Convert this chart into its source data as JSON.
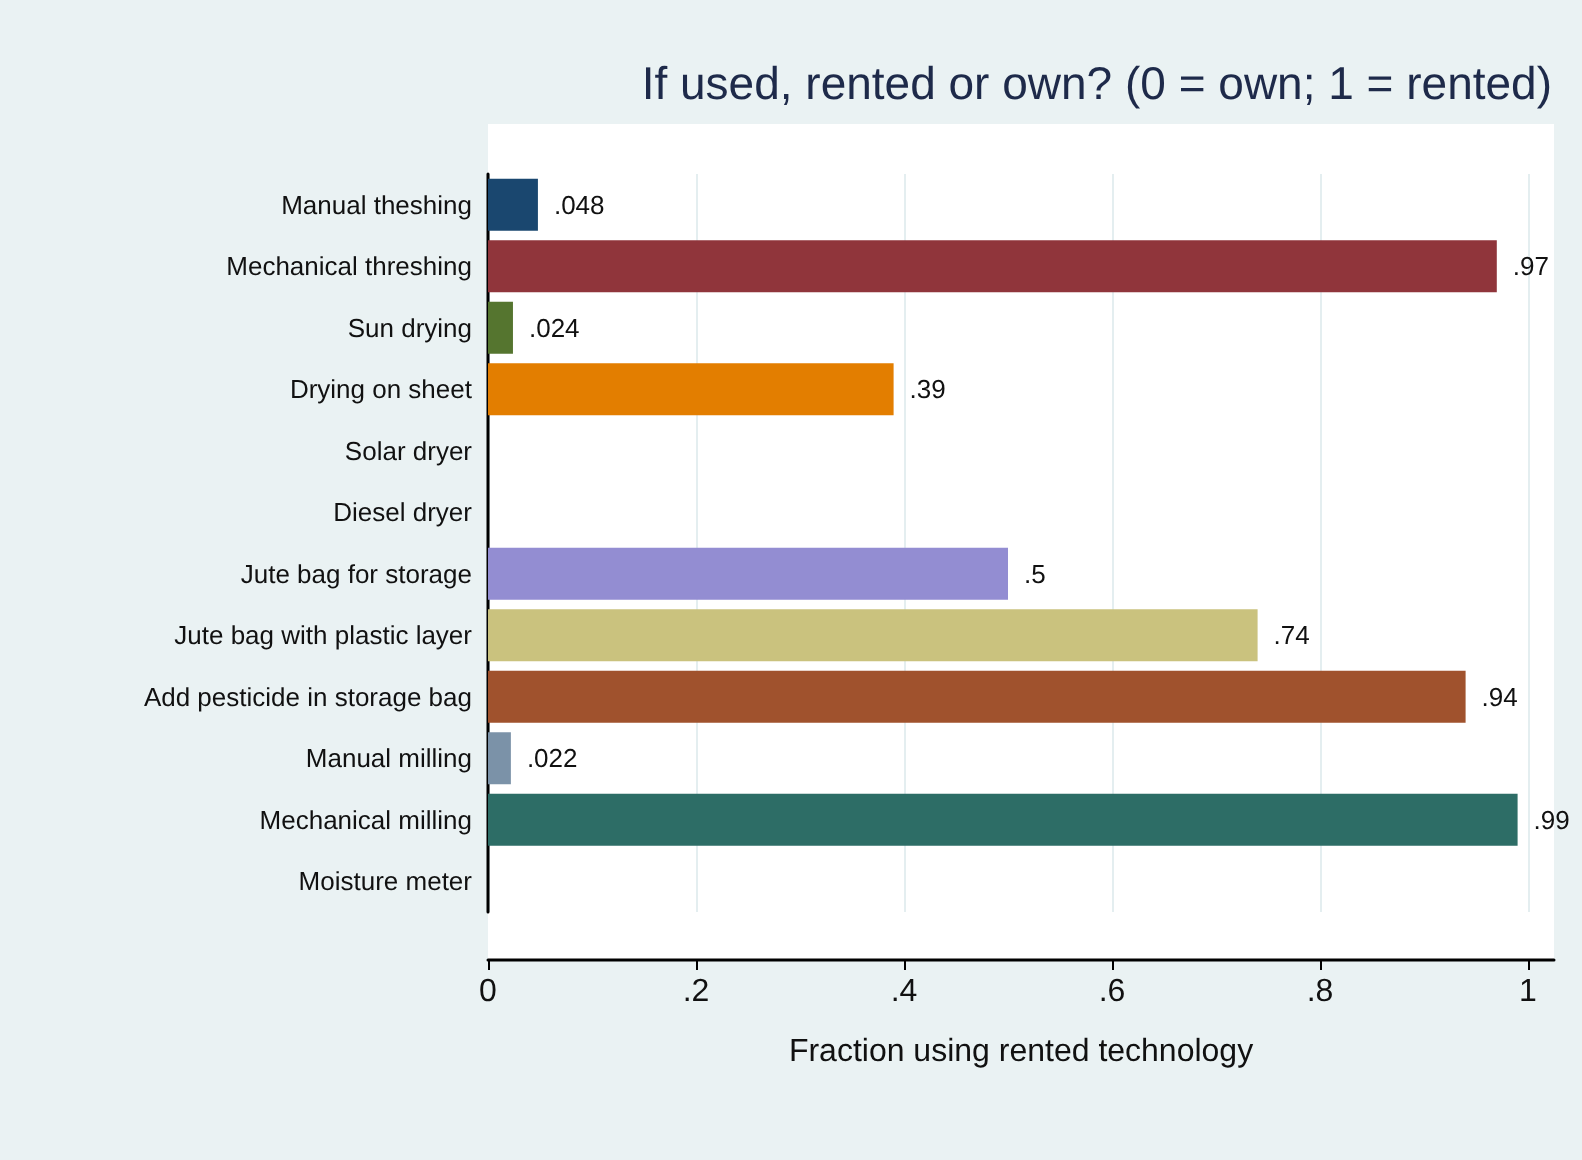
{
  "chart_data": {
    "type": "bar",
    "orientation": "horizontal",
    "title": "If used, rented or own? (0 = own; 1 = rented)",
    "xlabel": "Fraction using rented technology",
    "categories": [
      "Manual theshing",
      "Mechanical threshing",
      "Sun drying",
      "Drying on sheet",
      "Solar dryer",
      "Diesel dryer",
      "Jute bag for storage",
      "Jute bag with plastic layer",
      "Add pesticide in storage bag",
      "Manual milling",
      "Mechanical milling",
      "Moisture meter"
    ],
    "values": [
      0.048,
      0.97,
      0.024,
      0.39,
      null,
      null,
      0.5,
      0.74,
      0.94,
      0.022,
      0.99,
      null
    ],
    "value_labels": [
      ".048",
      ".97",
      ".024",
      ".39",
      null,
      null,
      ".5",
      ".74",
      ".94",
      ".022",
      ".99",
      null
    ],
    "colors": [
      "#1a476f",
      "#90353b",
      "#55752f",
      "#e37e00",
      null,
      null,
      "#938dd2",
      "#cac27e",
      "#a0522d",
      "#7b92a8",
      "#2d6d66",
      null
    ],
    "xlim": [
      0,
      1.025
    ],
    "xticks": [
      {
        "value": 0,
        "label": "0"
      },
      {
        "value": 0.2,
        "label": ".2"
      },
      {
        "value": 0.4,
        "label": ".4"
      },
      {
        "value": 0.6,
        "label": ".6"
      },
      {
        "value": 0.8,
        "label": ".8"
      },
      {
        "value": 1,
        "label": "1"
      }
    ],
    "grid": "x"
  }
}
